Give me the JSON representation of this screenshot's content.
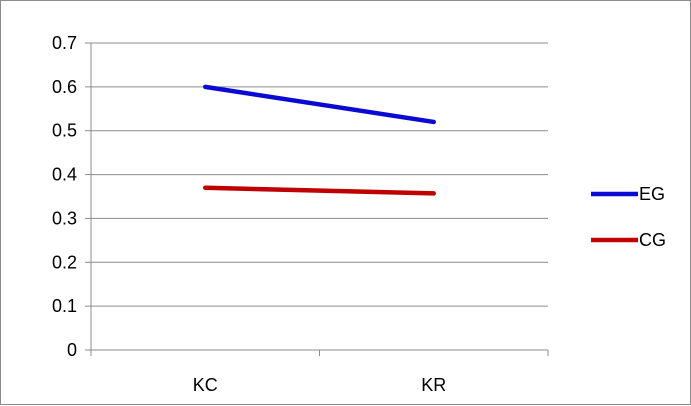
{
  "chart_data": {
    "type": "line",
    "categories": [
      "KC",
      "KR"
    ],
    "series": [
      {
        "name": "EG",
        "values": [
          0.6,
          0.52
        ],
        "color": "#0a0ad2"
      },
      {
        "name": "CG",
        "values": [
          0.37,
          0.357
        ],
        "color": "#c00000"
      }
    ],
    "ylim": [
      0,
      0.7
    ],
    "y_ticks": [
      0,
      0.1,
      0.2,
      0.3,
      0.4,
      0.5,
      0.6,
      0.7
    ],
    "y_tick_labels": [
      "0",
      "0.1",
      "0.2",
      "0.3",
      "0.4",
      "0.5",
      "0.6",
      "0.7"
    ],
    "title": "",
    "xlabel": "",
    "ylabel": "",
    "grid": "horizontal",
    "legend_position": "right"
  }
}
